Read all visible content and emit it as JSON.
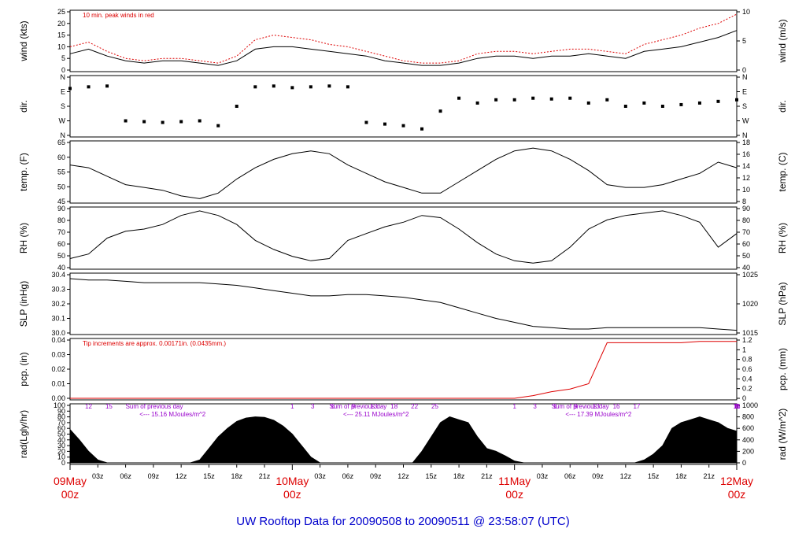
{
  "footer": {
    "title": "UW Rooftop Data for 20090508  to  20090511 @ 23:58:07  (UTC)"
  },
  "colors": {
    "footer": "#0000cc",
    "day_label": "#dd0000",
    "note": "#dd0000",
    "rad_note": "#9900cc",
    "axis": "#000000"
  },
  "chart_data": [
    {
      "type": "line",
      "panel": "wind",
      "ylabel_left": "wind (kts)",
      "ylabel_right": "wind (m/s)",
      "ylim": [
        0,
        25
      ],
      "yticks_left": [
        "0",
        "5",
        "10",
        "15",
        "20",
        "25"
      ],
      "yticks_right": [
        "0",
        "5",
        "10"
      ],
      "annotation": "10 min. peak winds in red",
      "x": [
        0,
        2,
        4,
        6,
        8,
        10,
        12,
        14,
        16,
        18,
        20,
        22,
        24,
        26,
        28,
        30,
        32,
        34,
        36,
        38,
        40,
        42,
        44,
        46,
        48,
        50,
        52,
        54,
        56,
        58,
        60,
        62,
        64,
        66,
        68,
        70,
        72
      ],
      "series": [
        {
          "values": [
            7,
            9,
            6,
            4,
            3,
            4,
            4,
            3,
            2,
            4,
            9,
            10,
            10,
            9,
            8,
            7,
            6,
            4,
            3,
            2,
            2,
            3,
            5,
            6,
            6,
            5,
            6,
            6,
            7,
            6,
            5,
            8,
            9,
            10,
            12,
            14,
            17
          ]
        },
        {
          "values": [
            10,
            12,
            8,
            5,
            4,
            5,
            5,
            4,
            3,
            6,
            13,
            15,
            14,
            13,
            11,
            10,
            8,
            6,
            4,
            3,
            3,
            4,
            7,
            8,
            8,
            7,
            8,
            9,
            9,
            8,
            7,
            11,
            13,
            15,
            18,
            20,
            24
          ]
        }
      ]
    },
    {
      "type": "scatter",
      "panel": "direction",
      "ylabel_left": "dir.",
      "ylabel_right": "dir.",
      "yticks_left": [
        "N",
        "W",
        "S",
        "E",
        "N"
      ],
      "yticks_right": [
        "N",
        "W",
        "S",
        "E",
        "N"
      ],
      "ylim": [
        0,
        360
      ],
      "x": [
        0,
        2,
        4,
        6,
        8,
        10,
        12,
        14,
        16,
        18,
        20,
        22,
        24,
        26,
        28,
        30,
        32,
        34,
        36,
        38,
        40,
        42,
        44,
        46,
        48,
        50,
        52,
        54,
        56,
        58,
        60,
        62,
        64,
        66,
        68,
        70,
        72
      ],
      "series": [
        {
          "values": [
            290,
            300,
            305,
            90,
            85,
            80,
            85,
            90,
            60,
            180,
            300,
            305,
            295,
            300,
            305,
            300,
            80,
            70,
            60,
            40,
            150,
            230,
            200,
            220,
            220,
            230,
            225,
            230,
            200,
            220,
            180,
            200,
            180,
            190,
            200,
            210,
            220
          ]
        }
      ]
    },
    {
      "type": "line",
      "panel": "temperature",
      "ylabel_left": "temp. (F)",
      "ylabel_right": "temp. (C)",
      "ylim": [
        45,
        66
      ],
      "yticks_left": [
        "45",
        "50",
        "55",
        "60",
        "65"
      ],
      "yticks_right": [
        "8",
        "10",
        "12",
        "14",
        "16",
        "18"
      ],
      "x": [
        0,
        2,
        4,
        6,
        8,
        10,
        12,
        14,
        16,
        18,
        20,
        22,
        24,
        26,
        28,
        30,
        32,
        34,
        36,
        38,
        40,
        42,
        44,
        46,
        48,
        50,
        52,
        54,
        56,
        58,
        60,
        62,
        64,
        66,
        68,
        70,
        72
      ],
      "series": [
        {
          "values": [
            58,
            57,
            54,
            51,
            50,
            49,
            47,
            46,
            48,
            53,
            57,
            60,
            62,
            63,
            62,
            58,
            55,
            52,
            50,
            48,
            48,
            52,
            56,
            60,
            63,
            64,
            63,
            60,
            56,
            51,
            50,
            50,
            51,
            53,
            55,
            59,
            57
          ]
        }
      ]
    },
    {
      "type": "line",
      "panel": "humidity",
      "ylabel_left": "RH (%)",
      "ylabel_right": "RH (%)",
      "ylim": [
        40,
        92
      ],
      "yticks_left": [
        "40",
        "50",
        "60",
        "70",
        "80",
        "90"
      ],
      "yticks_right": [
        "40",
        "50",
        "60",
        "70",
        "80",
        "90"
      ],
      "x": [
        0,
        2,
        4,
        6,
        8,
        10,
        12,
        14,
        16,
        18,
        20,
        22,
        24,
        26,
        28,
        30,
        32,
        34,
        36,
        38,
        40,
        42,
        44,
        46,
        48,
        50,
        52,
        54,
        56,
        58,
        60,
        62,
        64,
        66,
        68,
        70,
        72
      ],
      "series": [
        {
          "values": [
            48,
            52,
            66,
            72,
            74,
            78,
            86,
            90,
            86,
            78,
            64,
            56,
            50,
            46,
            48,
            64,
            70,
            76,
            80,
            86,
            84,
            74,
            62,
            52,
            46,
            44,
            46,
            58,
            74,
            82,
            86,
            88,
            90,
            86,
            80,
            58,
            70
          ]
        }
      ]
    },
    {
      "type": "line",
      "panel": "pressure",
      "ylabel_left": "SLP (inHg)",
      "ylabel_right": "SLP (hPa)",
      "ylim": [
        29.97,
        30.41
      ],
      "yticks_left": [
        "30.0",
        "30.1",
        "30.2",
        "30.3",
        "30.4"
      ],
      "yticks_right": [
        "1015",
        "1020",
        "1025"
      ],
      "x": [
        0,
        2,
        4,
        6,
        8,
        10,
        12,
        14,
        16,
        18,
        20,
        22,
        24,
        26,
        28,
        30,
        32,
        34,
        36,
        38,
        40,
        42,
        44,
        46,
        48,
        50,
        52,
        54,
        56,
        58,
        60,
        62,
        64,
        66,
        68,
        70,
        72
      ],
      "series": [
        {
          "values": [
            30.38,
            30.37,
            30.37,
            30.36,
            30.35,
            30.35,
            30.35,
            30.35,
            30.34,
            30.33,
            30.31,
            30.29,
            30.27,
            30.25,
            30.25,
            30.26,
            30.26,
            30.25,
            30.24,
            30.22,
            30.2,
            30.16,
            30.12,
            30.08,
            30.05,
            30.02,
            30.01,
            30.0,
            30.0,
            30.01,
            30.01,
            30.01,
            30.01,
            30.01,
            30.01,
            30.0,
            29.99
          ]
        }
      ]
    },
    {
      "type": "line",
      "panel": "precipitation",
      "ylabel_left": "pcp. (in)",
      "ylabel_right": "pcp. (mm)",
      "ylim": [
        0,
        0.044
      ],
      "yticks_left": [
        "0.00",
        "0.01",
        "0.02",
        "0.03",
        "0.04"
      ],
      "yticks_right": [
        "0",
        "0.2",
        "0.4",
        "0.6",
        "0.8",
        "1",
        "1.2"
      ],
      "annotation": "Tip increments are approx. 0.00171in. (0.0435mm.)",
      "x": [
        0,
        48,
        50,
        52,
        54,
        56,
        58,
        60,
        62,
        64,
        66,
        68,
        70,
        72
      ],
      "series": [
        {
          "values": [
            0.0,
            0.0,
            0.002,
            0.005,
            0.007,
            0.011,
            0.042,
            0.042,
            0.042,
            0.042,
            0.042,
            0.043,
            0.043,
            0.043
          ]
        }
      ]
    },
    {
      "type": "area",
      "panel": "radiation",
      "ylabel_left": "rad(Lgly/hr)",
      "ylabel_right": "rad (W/m^2)",
      "ylim": [
        0,
        100
      ],
      "yticks_left": [
        "0",
        "10",
        "20",
        "30",
        "40",
        "50",
        "60",
        "70",
        "80",
        "90",
        "100"
      ],
      "yticks_right": [
        "0",
        "200",
        "400",
        "600",
        "800",
        "1000"
      ],
      "hour_marks": [
        {
          "day": 0,
          "labels": [
            "12",
            "15"
          ]
        },
        {
          "day": 1,
          "labels": [
            "1",
            "3",
            "6",
            "9",
            "13",
            "18",
            "22",
            "25"
          ]
        },
        {
          "day": 2,
          "labels": [
            "1",
            "3",
            "6",
            "9",
            "13",
            "16",
            "17"
          ]
        },
        {
          "day": 3,
          "labels": [
            "1",
            "3",
            "6",
            "8",
            "11",
            "16"
          ]
        }
      ],
      "annotations": [
        {
          "line1": "Sum of previous day",
          "line2": "<--- 15.16 MJoules/m^2"
        },
        {
          "line1": "Sum of previous day",
          "line2": "<--- 25.11 MJoules/m^2"
        },
        {
          "line1": "Sum of previous day",
          "line2": "<--- 17.39 MJoules/m^2"
        }
      ],
      "x": [
        0,
        1,
        2,
        3,
        4,
        13,
        14,
        15,
        16,
        17,
        18,
        19,
        20,
        21,
        22,
        23,
        24,
        25,
        26,
        27,
        37,
        38,
        39,
        40,
        41,
        42,
        43,
        44,
        45,
        46,
        47,
        48,
        49,
        61,
        62,
        63,
        64,
        65,
        66,
        67,
        68,
        69,
        70,
        71,
        72
      ],
      "series": [
        {
          "values": [
            58,
            40,
            20,
            5,
            0,
            0,
            5,
            25,
            45,
            60,
            72,
            78,
            80,
            79,
            74,
            64,
            50,
            30,
            10,
            0,
            0,
            20,
            45,
            70,
            80,
            75,
            70,
            45,
            25,
            20,
            12,
            3,
            0,
            0,
            5,
            15,
            30,
            60,
            70,
            75,
            80,
            75,
            70,
            60,
            55
          ]
        }
      ]
    }
  ],
  "x_axis": {
    "hour_ticks": [
      "03z",
      "06z",
      "09z",
      "12z",
      "15z",
      "18z",
      "21z",
      "03z",
      "06z",
      "09z",
      "12z",
      "15z",
      "18z",
      "21z",
      "03z",
      "06z",
      "09z",
      "12z",
      "15z",
      "18z",
      "21z"
    ],
    "days": [
      {
        "date": "09May",
        "hour": "00z"
      },
      {
        "date": "10May",
        "hour": "00z"
      },
      {
        "date": "11May",
        "hour": "00z"
      },
      {
        "date": "12May",
        "hour": "00z"
      }
    ]
  }
}
